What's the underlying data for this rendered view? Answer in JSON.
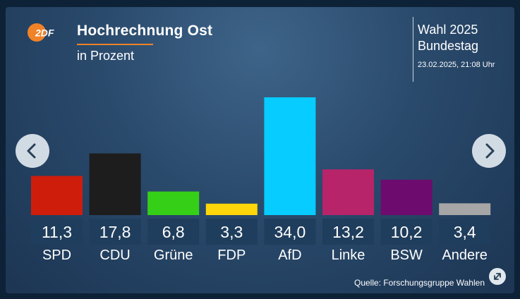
{
  "header": {
    "logo_text": "2DF",
    "title": "Hochrechnung Ost",
    "subtitle": "in Prozent",
    "election_year": "Wahl 2025",
    "election_body": "Bundestag",
    "timestamp": "23.02.2025, 21:08 Uhr"
  },
  "footer": {
    "source": "Quelle: Forschungsgruppe Wahlen"
  },
  "icons": {
    "prev": "chevron-left-icon",
    "next": "chevron-right-icon",
    "expand": "expand-icon",
    "logo": "zdf-logo"
  },
  "colors": {
    "accent": "#f08228",
    "label_box": "#1f3d5c"
  },
  "chart_data": {
    "type": "bar",
    "title": "Hochrechnung Ost",
    "subtitle": "in Prozent",
    "categories": [
      "SPD",
      "CDU",
      "Grüne",
      "FDP",
      "AfD",
      "Linke",
      "BSW",
      "Andere"
    ],
    "values": [
      11.3,
      17.8,
      6.8,
      3.3,
      34.0,
      13.2,
      10.2,
      3.4
    ],
    "value_labels": [
      "11,3",
      "17,8",
      "6,8",
      "3,3",
      "34,0",
      "13,2",
      "10,2",
      "3,4"
    ],
    "colors": [
      "#cf1d0c",
      "#1d1d1d",
      "#35cf18",
      "#ffd60a",
      "#06ccff",
      "#b7246a",
      "#6e0b6e",
      "#a6a6a6"
    ],
    "xlabel": "",
    "ylabel": "",
    "ylim": [
      0,
      34.0
    ],
    "grid": false,
    "legend": "none"
  }
}
